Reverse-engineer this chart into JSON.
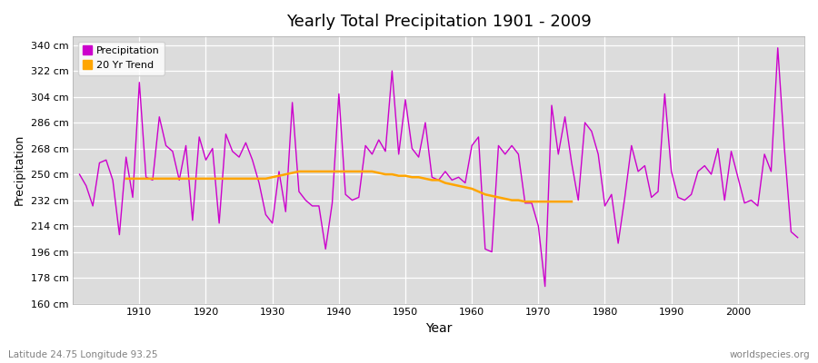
{
  "title": "Yearly Total Precipitation 1901 - 2009",
  "xlabel": "Year",
  "ylabel": "Precipitation",
  "subtitle_left": "Latitude 24.75 Longitude 93.25",
  "subtitle_right": "worldspecies.org",
  "line_color": "#CC00CC",
  "trend_color": "#FFA500",
  "fig_bg_color": "#FFFFFF",
  "plot_bg_color": "#DCDCDC",
  "ylim": [
    160,
    346
  ],
  "xlim": [
    1900,
    2010
  ],
  "yticks": [
    160,
    178,
    196,
    214,
    232,
    250,
    268,
    286,
    304,
    322,
    340
  ],
  "ytick_labels": [
    "160 cm",
    "178 cm",
    "196 cm",
    "214 cm",
    "232 cm",
    "250 cm",
    "268 cm",
    "286 cm",
    "304 cm",
    "322 cm",
    "340 cm"
  ],
  "xticks": [
    1910,
    1920,
    1930,
    1940,
    1950,
    1960,
    1970,
    1980,
    1990,
    2000
  ],
  "years": [
    1901,
    1902,
    1903,
    1904,
    1905,
    1906,
    1907,
    1908,
    1909,
    1910,
    1911,
    1912,
    1913,
    1914,
    1915,
    1916,
    1917,
    1918,
    1919,
    1920,
    1921,
    1922,
    1923,
    1924,
    1925,
    1926,
    1927,
    1928,
    1929,
    1930,
    1931,
    1932,
    1933,
    1934,
    1935,
    1936,
    1937,
    1938,
    1939,
    1940,
    1941,
    1942,
    1943,
    1944,
    1945,
    1946,
    1947,
    1948,
    1949,
    1950,
    1951,
    1952,
    1953,
    1954,
    1955,
    1956,
    1957,
    1958,
    1959,
    1960,
    1961,
    1962,
    1963,
    1964,
    1965,
    1966,
    1967,
    1968,
    1969,
    1970,
    1971,
    1972,
    1973,
    1974,
    1975,
    1976,
    1977,
    1978,
    1979,
    1980,
    1981,
    1982,
    1983,
    1984,
    1985,
    1986,
    1987,
    1988,
    1989,
    1990,
    1991,
    1992,
    1993,
    1994,
    1995,
    1996,
    1997,
    1998,
    1999,
    2000,
    2001,
    2002,
    2003,
    2004,
    2005,
    2006,
    2007,
    2008,
    2009
  ],
  "precip": [
    250,
    242,
    228,
    258,
    260,
    246,
    208,
    262,
    234,
    314,
    248,
    246,
    290,
    270,
    266,
    246,
    270,
    218,
    276,
    260,
    268,
    216,
    278,
    266,
    262,
    272,
    260,
    244,
    222,
    216,
    252,
    224,
    300,
    238,
    232,
    228,
    228,
    198,
    230,
    306,
    236,
    232,
    234,
    270,
    264,
    274,
    266,
    322,
    264,
    302,
    268,
    262,
    286,
    248,
    246,
    252,
    246,
    248,
    244,
    270,
    276,
    198,
    196,
    270,
    264,
    270,
    264,
    230,
    230,
    214,
    172,
    298,
    264,
    290,
    258,
    232,
    286,
    280,
    264,
    228,
    236,
    202,
    234,
    270,
    252,
    256,
    234,
    238,
    306,
    252,
    234,
    232,
    236,
    252,
    256,
    250,
    268,
    232,
    266,
    248,
    230,
    232,
    228,
    264,
    252,
    338,
    268,
    210,
    206
  ],
  "trend_years": [
    1908,
    1909,
    1910,
    1911,
    1912,
    1913,
    1914,
    1915,
    1916,
    1917,
    1918,
    1919,
    1920,
    1921,
    1922,
    1923,
    1924,
    1925,
    1926,
    1927,
    1928,
    1929,
    1930,
    1931,
    1932,
    1933,
    1934,
    1935,
    1936,
    1937,
    1938,
    1939,
    1940,
    1941,
    1942,
    1943,
    1944,
    1945,
    1946,
    1947,
    1948,
    1949,
    1950,
    1951,
    1952,
    1953,
    1954,
    1955,
    1956,
    1957,
    1958,
    1959,
    1960,
    1961,
    1962,
    1963,
    1964,
    1965,
    1966,
    1967,
    1968,
    1969,
    1970,
    1971,
    1972,
    1973,
    1974,
    1975
  ],
  "trend_vals": [
    247,
    247,
    247,
    247,
    247,
    247,
    247,
    247,
    247,
    247,
    247,
    247,
    247,
    247,
    247,
    247,
    247,
    247,
    247,
    247,
    247,
    247,
    248,
    249,
    250,
    251,
    252,
    252,
    252,
    252,
    252,
    252,
    252,
    252,
    252,
    252,
    252,
    252,
    251,
    250,
    250,
    249,
    249,
    248,
    248,
    247,
    246,
    246,
    244,
    243,
    242,
    241,
    240,
    238,
    236,
    235,
    234,
    233,
    232,
    232,
    231,
    231,
    231,
    231,
    231,
    231,
    231,
    231
  ]
}
